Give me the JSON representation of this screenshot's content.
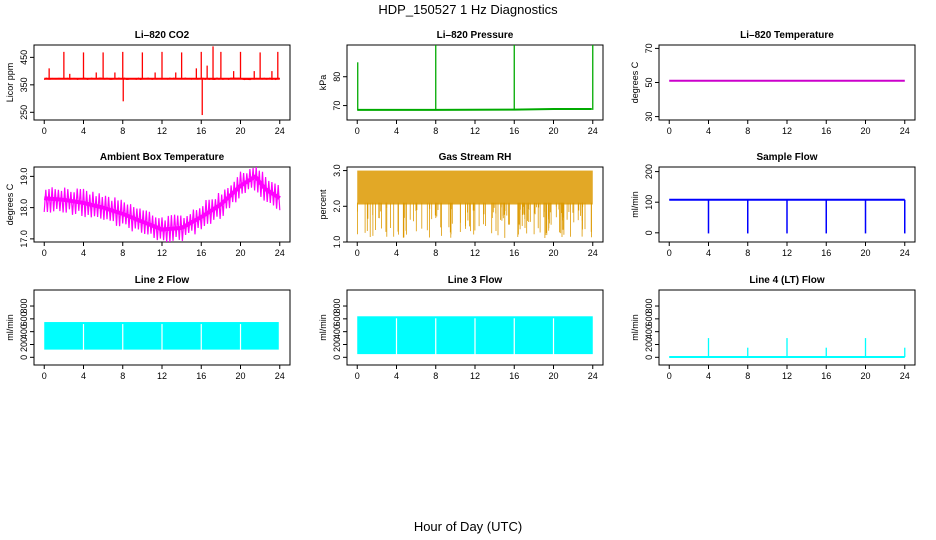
{
  "figure": {
    "title": "HDP_150527  1 Hz Diagnostics",
    "xlabel": "Hour of Day (UTC)"
  },
  "chart_data": [
    {
      "id": "co2",
      "type": "line",
      "title": "Li–820 CO2",
      "ylabel": "Licor ppm",
      "color": "#ff0000",
      "xlim": [
        0,
        24
      ],
      "xticks": [
        0,
        4,
        8,
        12,
        16,
        20,
        24
      ],
      "ylim": [
        222,
        495
      ],
      "yticks": [
        250,
        350,
        450
      ],
      "baseline": 372,
      "noise": 6,
      "spikes": [
        [
          0.5,
          410
        ],
        [
          2,
          470
        ],
        [
          2.6,
          390
        ],
        [
          4,
          468
        ],
        [
          5.3,
          395
        ],
        [
          6,
          468
        ],
        [
          7.2,
          395
        ],
        [
          8,
          470
        ],
        [
          8.05,
          290
        ],
        [
          10,
          468
        ],
        [
          11.3,
          395
        ],
        [
          12,
          470
        ],
        [
          13.4,
          395
        ],
        [
          14,
          468
        ],
        [
          15.5,
          410
        ],
        [
          16,
          470
        ],
        [
          16.1,
          240
        ],
        [
          16.6,
          420
        ],
        [
          17.2,
          490
        ],
        [
          18,
          470
        ],
        [
          19.3,
          400
        ],
        [
          20,
          470
        ],
        [
          21.4,
          400
        ],
        [
          22,
          468
        ],
        [
          23.2,
          400
        ],
        [
          23.8,
          470
        ]
      ],
      "series": [
        {
          "name": "CO2",
          "x": [
            0,
            24
          ],
          "y": [
            372,
            372
          ]
        }
      ]
    },
    {
      "id": "pressure",
      "type": "line",
      "title": "Li–820 Pressure",
      "ylabel": "kPa",
      "color": "#00aa00",
      "xlim": [
        0,
        24
      ],
      "xticks": [
        0,
        4,
        8,
        12,
        16,
        20,
        24
      ],
      "ylim": [
        65,
        91
      ],
      "yticks": [
        70,
        80
      ],
      "baseline": 68.5,
      "spikes": [
        [
          0.05,
          85
        ],
        [
          8,
          91
        ],
        [
          16,
          91
        ],
        [
          24,
          91
        ]
      ],
      "series": [
        {
          "name": "Pressure",
          "x": [
            0,
            8,
            16,
            20,
            23.9
          ],
          "y": [
            68.5,
            68.5,
            68.6,
            68.8,
            68.8
          ]
        }
      ]
    },
    {
      "id": "temp",
      "type": "line",
      "title": "Li–820 Temperature",
      "ylabel": "degrees C",
      "color": "#cc00cc",
      "xlim": [
        0,
        24
      ],
      "xticks": [
        0,
        4,
        8,
        12,
        16,
        20,
        24
      ],
      "ylim": [
        28,
        72
      ],
      "yticks": [
        30,
        50,
        70
      ],
      "series": [
        {
          "name": "Temperature",
          "x": [
            0,
            24
          ],
          "y": [
            51,
            51
          ]
        }
      ]
    },
    {
      "id": "ambient",
      "type": "line",
      "title": "Ambient Box Temperature",
      "ylabel": "degrees C",
      "color": "#ff00ff",
      "xlim": [
        0,
        24
      ],
      "xticks": [
        0,
        4,
        8,
        12,
        16,
        20,
        24
      ],
      "ylim": [
        16.9,
        19.3
      ],
      "yticks": [
        17.0,
        18.0,
        19.0
      ],
      "yfmt": 1,
      "band": 0.45,
      "series": [
        {
          "name": "Ambient",
          "x": [
            0,
            2,
            4,
            6,
            8,
            10,
            12,
            14,
            16,
            18,
            20,
            21.5,
            22.5,
            24
          ],
          "y": [
            18.3,
            18.25,
            18.15,
            18.0,
            17.8,
            17.55,
            17.3,
            17.35,
            17.7,
            18.1,
            18.7,
            19.0,
            18.6,
            18.3
          ]
        }
      ]
    },
    {
      "id": "rh",
      "type": "scatter",
      "title": "Gas Stream RH",
      "ylabel": "percent",
      "color": "#dd9900",
      "xlim": [
        0,
        24
      ],
      "xticks": [
        0,
        4,
        8,
        12,
        16,
        20,
        24
      ],
      "ylim": [
        1.0,
        3.1
      ],
      "yticks": [
        1.0,
        2.0,
        3.0
      ],
      "yfmt": 1,
      "series": [
        {
          "name": "RH",
          "x": [
            0,
            24
          ],
          "y": [
            2.7,
            2.7
          ]
        }
      ],
      "range": [
        1.1,
        3.0
      ]
    },
    {
      "id": "sample",
      "type": "line",
      "title": "Sample Flow",
      "ylabel": "ml/min",
      "color": "#0000ff",
      "xlim": [
        0,
        24
      ],
      "xticks": [
        0,
        4,
        8,
        12,
        16,
        20,
        24
      ],
      "ylim": [
        -30,
        215
      ],
      "yticks": [
        0,
        100,
        200
      ],
      "baseline": 108,
      "dips": [
        [
          4,
          -2
        ],
        [
          8,
          -2
        ],
        [
          12,
          -2
        ],
        [
          16,
          -2
        ],
        [
          20,
          -2
        ],
        [
          24,
          -2
        ]
      ],
      "series": [
        {
          "name": "Sample",
          "x": [
            0,
            24
          ],
          "y": [
            108,
            108
          ]
        }
      ]
    },
    {
      "id": "line2",
      "type": "area",
      "title": "Line 2 Flow",
      "ylabel": "ml/min",
      "color": "#00ffff",
      "xlim": [
        0,
        24
      ],
      "xticks": [
        0,
        4,
        8,
        12,
        16,
        20,
        24
      ],
      "ylim": [
        -120,
        1050
      ],
      "yticks": [
        0,
        200,
        400,
        600,
        800
      ],
      "series": [
        {
          "name": "Line 2",
          "x": [
            0,
            23.9
          ],
          "y": [
            550,
            550
          ]
        }
      ],
      "lower": 120
    },
    {
      "id": "line3",
      "type": "area",
      "title": "Line 3 Flow",
      "ylabel": "ml/min",
      "color": "#00ffff",
      "xlim": [
        0,
        24
      ],
      "xticks": [
        0,
        4,
        8,
        12,
        16,
        20,
        24
      ],
      "ylim": [
        -120,
        1050
      ],
      "yticks": [
        0,
        200,
        400,
        600,
        800
      ],
      "series": [
        {
          "name": "Line 3",
          "x": [
            0,
            24
          ],
          "y": [
            640,
            640
          ]
        }
      ],
      "lower": 50
    },
    {
      "id": "line4",
      "type": "line",
      "title": "Line 4 (LT) Flow",
      "ylabel": "ml/min",
      "color": "#00ffff",
      "xlim": [
        0,
        24
      ],
      "xticks": [
        0,
        4,
        8,
        12,
        16,
        20,
        24
      ],
      "ylim": [
        -120,
        1050
      ],
      "yticks": [
        0,
        200,
        400,
        600,
        800
      ],
      "baseline": 5,
      "spikes": [
        [
          4,
          300
        ],
        [
          8,
          150
        ],
        [
          12,
          300
        ],
        [
          16,
          150
        ],
        [
          20,
          300
        ],
        [
          24,
          150
        ]
      ],
      "series": [
        {
          "name": "Line 4",
          "x": [
            0,
            24
          ],
          "y": [
            5,
            5
          ]
        }
      ]
    }
  ]
}
